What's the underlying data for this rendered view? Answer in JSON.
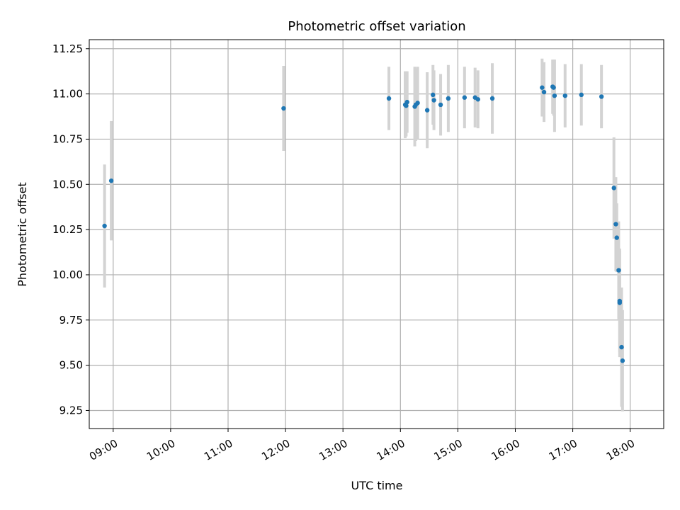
{
  "chart_data": {
    "type": "scatter",
    "title": "Photometric offset variation",
    "xlabel": "UTC time",
    "ylabel": "Photometric offset",
    "xlim": [
      "08:35",
      "18:35"
    ],
    "ylim": [
      9.15,
      11.3
    ],
    "x_ticks": [
      "09:00",
      "10:00",
      "11:00",
      "12:00",
      "13:00",
      "14:00",
      "15:00",
      "16:00",
      "17:00",
      "18:00"
    ],
    "y_ticks": [
      "9.25",
      "9.50",
      "9.75",
      "10.00",
      "10.25",
      "10.50",
      "10.75",
      "11.00",
      "11.25"
    ],
    "grid": true,
    "point_color": "#1f77b4",
    "errorbar_color": "#d3d3d3",
    "series": [
      {
        "x": [
          "08:51",
          "08:58",
          "11:58",
          "13:48",
          "14:05",
          "14:06",
          "14:07",
          "14:15",
          "14:16",
          "14:18",
          "14:28",
          "14:34",
          "14:35",
          "14:42",
          "14:50",
          "15:07",
          "15:18",
          "15:21",
          "15:36",
          "16:28",
          "16:30",
          "16:39",
          "16:40",
          "16:41",
          "16:52",
          "17:09",
          "17:30",
          "17:43",
          "17:45",
          "17:46",
          "17:48",
          "17:49",
          "17:49",
          "17:51",
          "17:52"
        ],
        "y": [
          10.27,
          10.52,
          10.92,
          10.975,
          10.94,
          10.935,
          10.955,
          10.93,
          10.94,
          10.95,
          10.91,
          10.995,
          10.965,
          10.94,
          10.975,
          10.98,
          10.98,
          10.97,
          10.975,
          11.035,
          11.01,
          11.04,
          11.035,
          10.99,
          10.99,
          10.995,
          10.985,
          10.48,
          10.28,
          10.205,
          10.025,
          9.855,
          9.845,
          9.6,
          9.525
        ],
        "err": [
          0.34,
          0.33,
          0.235,
          0.175,
          0.185,
          0.17,
          0.17,
          0.22,
          0.2,
          0.2,
          0.21,
          0.165,
          0.165,
          0.17,
          0.185,
          0.17,
          0.165,
          0.16,
          0.195,
          0.16,
          0.165,
          0.15,
          0.155,
          0.2,
          0.175,
          0.17,
          0.175,
          0.28,
          0.26,
          0.19,
          0.27,
          0.28,
          0.3,
          0.33,
          0.28
        ]
      }
    ]
  }
}
